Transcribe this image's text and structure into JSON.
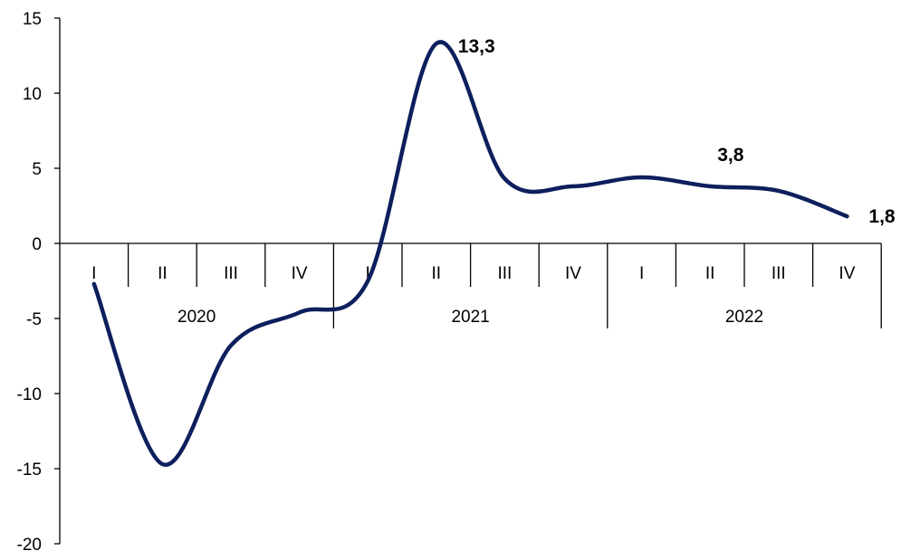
{
  "chart_data": {
    "type": "line",
    "ylim": [
      -20,
      15
    ],
    "yticks": [
      15,
      10,
      5,
      0,
      -5,
      -10,
      -15,
      -20
    ],
    "years": [
      "2020",
      "2021",
      "2022"
    ],
    "quarters": [
      "I",
      "II",
      "III",
      "IV",
      "I",
      "II",
      "III",
      "IV",
      "I",
      "II",
      "III",
      "IV"
    ],
    "series": [
      {
        "values": [
          -2.7,
          -14.7,
          -6.8,
          -4.6,
          -2.5,
          13.3,
          4.3,
          3.8,
          4.4,
          3.8,
          3.5,
          1.8
        ],
        "color": "#0d1f5c"
      }
    ],
    "data_labels": [
      {
        "index": 5,
        "text": "13,3"
      },
      {
        "index": 9,
        "text": "3,8"
      },
      {
        "index": 11,
        "text": "1,8"
      }
    ]
  }
}
